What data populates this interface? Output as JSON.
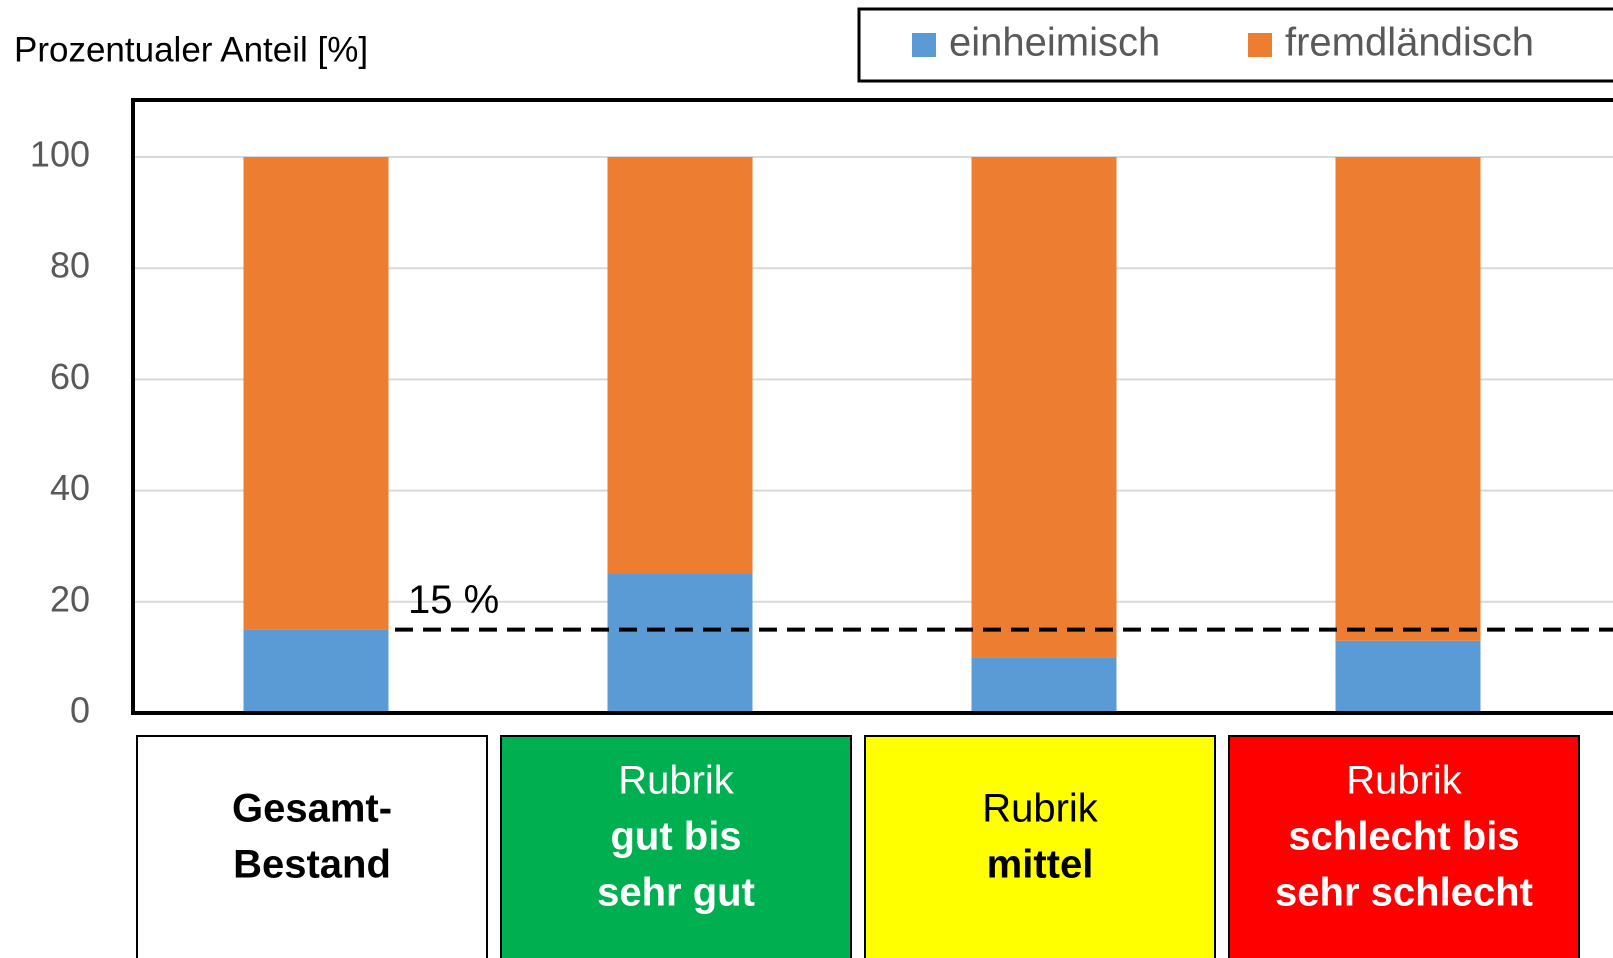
{
  "chart_data": {
    "type": "stacked_bar",
    "ylabel": "Prozentualer Anteil [%]",
    "categories": [
      [
        "Gesamt-",
        "Bestand"
      ],
      [
        "Rubrik",
        "gut bis",
        "sehr gut"
      ],
      [
        "Rubrik",
        "mittel"
      ],
      [
        "Rubrik",
        "schlecht bis",
        "sehr schlecht"
      ]
    ],
    "category_colors": [
      "#ffffff",
      "#00b050",
      "#ffff00",
      "#ff0000"
    ],
    "category_text_colors": [
      "#000000",
      "#ffffff",
      "#000000",
      "#ffffff"
    ],
    "category_bold_from": [
      0,
      1,
      1,
      1
    ],
    "series": [
      {
        "name": "einheimisch",
        "color": "#5b9bd5",
        "values": [
          15,
          25,
          10,
          13
        ]
      },
      {
        "name": "fremdländisch",
        "color": "#ed7d31",
        "values": [
          85,
          75,
          90,
          87
        ]
      }
    ],
    "reference_line": {
      "value": 15,
      "label": "15 %"
    },
    "ylim": [
      0,
      100
    ],
    "yticks": [
      0,
      20,
      40,
      60,
      80,
      100
    ],
    "grid": true,
    "legend": "top-right"
  }
}
